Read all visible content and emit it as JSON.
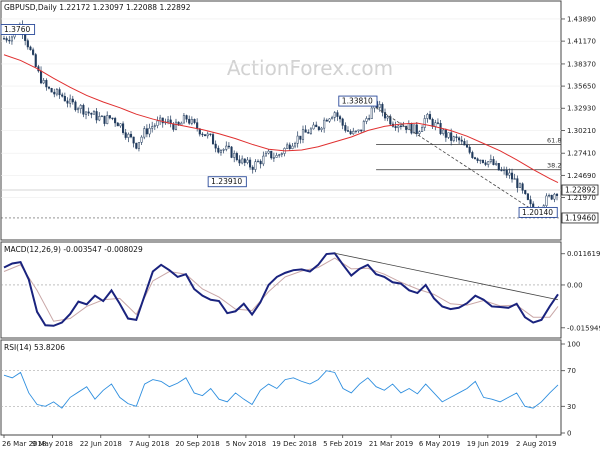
{
  "chart_data": [
    {
      "type": "candlestick",
      "title": "GBPUSD,Daily  1.22172 1.23097 1.22088 1.22892",
      "watermark": "ActionForex.com",
      "ylim": [
        1.17,
        1.445
      ],
      "yticks": [
        "1.43890",
        "1.41170",
        "1.38370",
        "1.35650",
        "1.32930",
        "1.30210",
        "1.27410",
        "1.24690",
        "1.21970"
      ],
      "xticks": [
        "26 Mar 2018",
        "9 May 2018",
        "22 Jun 2018",
        "7 Aug 2018",
        "20 Sep 2018",
        "5 Nov 2018",
        "19 Dec 2018",
        "5 Feb 2019",
        "21 Mar 2019",
        "6 May 2019",
        "19 Jun 2019",
        "2 Aug 2019"
      ],
      "current_price": "1.22892",
      "support_level": "1.19460",
      "annotations": [
        {
          "label": "1.3760",
          "x": 0,
          "y": 1.426
        },
        {
          "label": "1.23910",
          "x": 135,
          "y": 1.2391
        },
        {
          "label": "1.33810",
          "x": 214,
          "y": 1.3381
        },
        {
          "label": "1.20140",
          "x": 323,
          "y": 1.2014
        }
      ],
      "fib_levels": [
        {
          "label": "61.8",
          "y": 1.2848
        },
        {
          "label": "38.2",
          "y": 1.2538
        }
      ],
      "trendline": {
        "x": [
          225,
          323
        ],
        "y": [
          1.33,
          1.2
        ]
      },
      "series": [
        {
          "name": "close",
          "x": [
            0,
            5,
            10,
            15,
            20,
            25,
            30,
            35,
            40,
            45,
            50,
            55,
            60,
            65,
            70,
            75,
            80,
            85,
            90,
            95,
            100,
            105,
            110,
            115,
            120,
            125,
            130,
            135,
            140,
            145,
            150,
            155,
            160,
            165,
            170,
            175,
            180,
            185,
            190,
            195,
            200,
            205,
            210,
            215,
            220,
            225,
            230,
            235,
            240,
            245,
            250,
            255,
            260,
            265,
            270,
            275,
            280,
            285,
            290,
            295,
            300,
            305,
            310,
            315,
            320,
            325,
            330,
            335
          ],
          "y": [
            1.415,
            1.418,
            1.432,
            1.405,
            1.375,
            1.355,
            1.348,
            1.345,
            1.335,
            1.332,
            1.325,
            1.32,
            1.315,
            1.318,
            1.31,
            1.295,
            1.285,
            1.3,
            1.308,
            1.312,
            1.312,
            1.305,
            1.318,
            1.308,
            1.3,
            1.292,
            1.28,
            1.278,
            1.27,
            1.262,
            1.258,
            1.265,
            1.272,
            1.27,
            1.28,
            1.29,
            1.296,
            1.302,
            1.305,
            1.318,
            1.325,
            1.308,
            1.297,
            1.3,
            1.32,
            1.335,
            1.322,
            1.312,
            1.31,
            1.306,
            1.301,
            1.318,
            1.31,
            1.3,
            1.292,
            1.29,
            1.278,
            1.27,
            1.266,
            1.262,
            1.252,
            1.248,
            1.238,
            1.22,
            1.202,
            1.212,
            1.22,
            1.229
          ]
        },
        {
          "name": "moving-average",
          "x": [
            0,
            10,
            20,
            30,
            40,
            50,
            60,
            70,
            80,
            90,
            100,
            110,
            120,
            130,
            140,
            150,
            160,
            170,
            180,
            190,
            200,
            210,
            220,
            230,
            240,
            250,
            260,
            270,
            280,
            290,
            300,
            310,
            320,
            330,
            335
          ],
          "y": [
            1.395,
            1.388,
            1.378,
            1.366,
            1.355,
            1.345,
            1.337,
            1.33,
            1.322,
            1.316,
            1.311,
            1.307,
            1.303,
            1.298,
            1.292,
            1.285,
            1.279,
            1.277,
            1.278,
            1.282,
            1.288,
            1.294,
            1.302,
            1.307,
            1.31,
            1.311,
            1.307,
            1.302,
            1.295,
            1.286,
            1.277,
            1.266,
            1.254,
            1.243,
            1.238
          ]
        }
      ]
    },
    {
      "type": "line",
      "title": "MACD(12,26,9) -0.003547 -0.008029",
      "ylim": [
        -0.019,
        0.0145
      ],
      "yticks": [
        "0.011619",
        "0.00",
        "-0.015949"
      ],
      "trendline": {
        "x": [
          200,
          335
        ],
        "y": [
          0.0118,
          -0.0055
        ]
      },
      "series": [
        {
          "name": "macd",
          "x": [
            0,
            5,
            10,
            15,
            20,
            25,
            30,
            35,
            40,
            45,
            50,
            55,
            60,
            65,
            70,
            75,
            80,
            85,
            90,
            95,
            100,
            105,
            110,
            115,
            120,
            125,
            130,
            135,
            140,
            145,
            150,
            155,
            160,
            165,
            170,
            175,
            180,
            185,
            190,
            195,
            200,
            205,
            210,
            215,
            220,
            225,
            230,
            235,
            240,
            245,
            250,
            255,
            260,
            265,
            270,
            275,
            280,
            285,
            290,
            295,
            300,
            305,
            310,
            315,
            320,
            325,
            330,
            335
          ],
          "y": [
            0.0065,
            0.008,
            0.0085,
            0.002,
            -0.01,
            -0.015,
            -0.0152,
            -0.014,
            -0.0108,
            -0.0062,
            -0.0072,
            -0.004,
            -0.006,
            -0.002,
            -0.007,
            -0.0125,
            -0.013,
            -0.004,
            0.005,
            0.0075,
            0.0055,
            0.003,
            0.004,
            -0.0015,
            -0.004,
            -0.0055,
            -0.006,
            -0.0105,
            -0.0098,
            -0.007,
            -0.011,
            -0.0065,
            0.0,
            0.003,
            0.0045,
            0.0055,
            0.0058,
            0.005,
            0.0075,
            0.0115,
            0.0118,
            0.0075,
            0.0035,
            0.006,
            0.0075,
            0.004,
            0.003,
            0.001,
            0.0005,
            -0.002,
            -0.003,
            0.0,
            -0.005,
            -0.008,
            -0.009,
            -0.0085,
            -0.0068,
            -0.004,
            -0.0055,
            -0.008,
            -0.0082,
            -0.0085,
            -0.007,
            -0.012,
            -0.014,
            -0.013,
            -0.008,
            -0.0035
          ]
        },
        {
          "name": "signal",
          "x": [
            0,
            10,
            20,
            30,
            40,
            50,
            60,
            70,
            80,
            90,
            100,
            110,
            120,
            130,
            140,
            150,
            160,
            170,
            180,
            190,
            200,
            210,
            220,
            230,
            240,
            250,
            260,
            270,
            280,
            290,
            300,
            310,
            320,
            330,
            335
          ],
          "y": [
            0.005,
            0.0075,
            -0.002,
            -0.0135,
            -0.0125,
            -0.008,
            -0.0055,
            -0.005,
            -0.011,
            0.0015,
            0.005,
            0.004,
            -0.0015,
            -0.0045,
            -0.009,
            -0.0095,
            -0.0025,
            0.003,
            0.0052,
            0.0065,
            0.01,
            0.006,
            0.0062,
            0.004,
            0.001,
            -0.0015,
            -0.0035,
            -0.007,
            -0.0075,
            -0.0058,
            -0.0078,
            -0.0075,
            -0.012,
            -0.012,
            -0.008
          ]
        }
      ]
    },
    {
      "type": "line",
      "title": "RSI(14) 53.8206",
      "ylim": [
        0,
        100
      ],
      "yticks": [
        "100",
        "70",
        "30",
        "0"
      ],
      "series": [
        {
          "name": "rsi",
          "x": [
            0,
            5,
            10,
            15,
            20,
            25,
            30,
            35,
            40,
            45,
            50,
            55,
            60,
            65,
            70,
            75,
            80,
            85,
            90,
            95,
            100,
            105,
            110,
            115,
            120,
            125,
            130,
            135,
            140,
            145,
            150,
            155,
            160,
            165,
            170,
            175,
            180,
            185,
            190,
            195,
            200,
            205,
            210,
            215,
            220,
            225,
            230,
            235,
            240,
            245,
            250,
            255,
            260,
            265,
            270,
            275,
            280,
            285,
            290,
            295,
            300,
            305,
            310,
            315,
            320,
            325,
            330,
            335
          ],
          "y": [
            65,
            62,
            68,
            45,
            32,
            30,
            35,
            28,
            40,
            46,
            52,
            38,
            48,
            55,
            40,
            33,
            30,
            55,
            60,
            58,
            52,
            56,
            62,
            45,
            42,
            50,
            38,
            35,
            45,
            38,
            32,
            48,
            55,
            50,
            60,
            62,
            58,
            55,
            60,
            70,
            68,
            50,
            45,
            55,
            62,
            52,
            48,
            55,
            45,
            50,
            44,
            55,
            45,
            35,
            40,
            45,
            50,
            58,
            40,
            38,
            35,
            40,
            45,
            30,
            28,
            35,
            45,
            54
          ]
        }
      ]
    }
  ]
}
